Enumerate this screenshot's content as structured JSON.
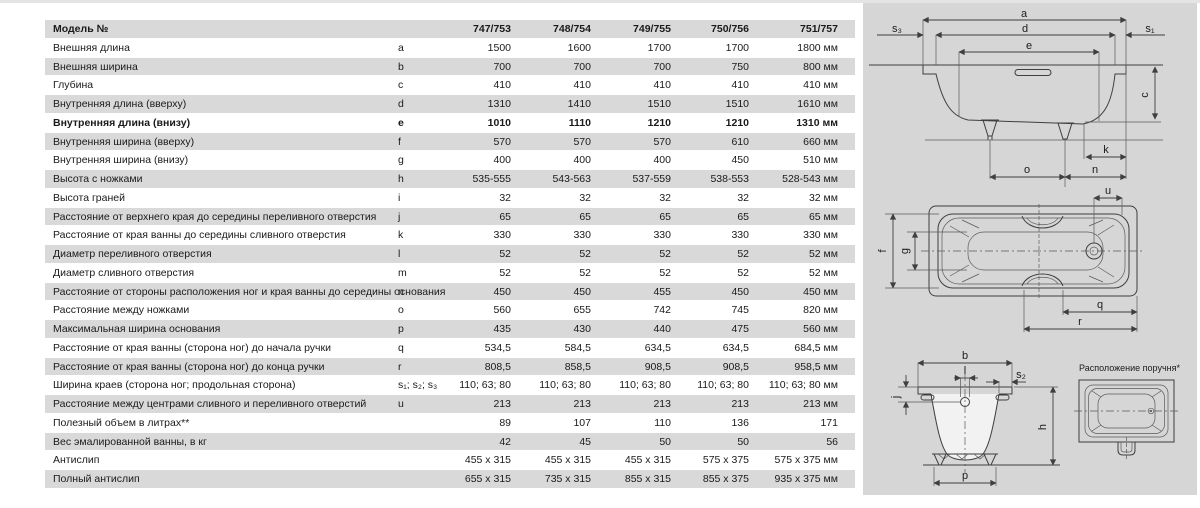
{
  "colors": {
    "row_shade": "#d9d9d9",
    "panel": "#d6d6d6",
    "line": "#3f3f3f",
    "text": "#1a1a1a"
  },
  "table": {
    "header": {
      "label": "Модель №",
      "models": [
        "747/753",
        "748/754",
        "749/755",
        "750/756",
        "751/757"
      ]
    },
    "rows": [
      {
        "label": "Внешняя длина",
        "letter": "a",
        "values": [
          "1500",
          "1600",
          "1700",
          "1700",
          "1800"
        ],
        "unit": "мм"
      },
      {
        "label": "Внешняя ширина",
        "letter": "b",
        "values": [
          "700",
          "700",
          "700",
          "750",
          "800"
        ],
        "unit": "мм"
      },
      {
        "label": "Глубина",
        "letter": "c",
        "values": [
          "410",
          "410",
          "410",
          "410",
          "410"
        ],
        "unit": "мм"
      },
      {
        "label": "Внутренняя длина (вверху)",
        "letter": "d",
        "values": [
          "1310",
          "1410",
          "1510",
          "1510",
          "1610"
        ],
        "unit": "мм"
      },
      {
        "label": "Внутренняя длина (внизу)",
        "letter": "e",
        "values": [
          "1010",
          "1110",
          "1210",
          "1210",
          "1310"
        ],
        "unit": "мм",
        "bold": true
      },
      {
        "label": "Внутренняя ширина (вверху)",
        "letter": "f",
        "values": [
          "570",
          "570",
          "570",
          "610",
          "660"
        ],
        "unit": "мм"
      },
      {
        "label": "Внутренняя ширина (внизу)",
        "letter": "g",
        "values": [
          "400",
          "400",
          "400",
          "450",
          "510"
        ],
        "unit": "мм"
      },
      {
        "label": "Высота с ножками",
        "letter": "h",
        "values": [
          "535-555",
          "543-563",
          "537-559",
          "538-553",
          "528-543"
        ],
        "unit": "мм"
      },
      {
        "label": "Высота граней",
        "letter": "i",
        "values": [
          "32",
          "32",
          "32",
          "32",
          "32"
        ],
        "unit": "мм"
      },
      {
        "label": "Расстояние от верхнего края до середины переливного отверстия",
        "letter": "j",
        "values": [
          "65",
          "65",
          "65",
          "65",
          "65"
        ],
        "unit": "мм"
      },
      {
        "label": "Расстояние от края ванны до середины сливного отверстия",
        "letter": "k",
        "values": [
          "330",
          "330",
          "330",
          "330",
          "330"
        ],
        "unit": "мм"
      },
      {
        "label": "Диаметр переливного отверстия",
        "letter": "l",
        "values": [
          "52",
          "52",
          "52",
          "52",
          "52"
        ],
        "unit": "мм"
      },
      {
        "label": "Диаметр сливного отверстия",
        "letter": "m",
        "values": [
          "52",
          "52",
          "52",
          "52",
          "52"
        ],
        "unit": "мм"
      },
      {
        "label": "Расстояние от стороны расположения ног и края ванны до середины основания",
        "letter": "n",
        "values": [
          "450",
          "450",
          "455",
          "450",
          "450"
        ],
        "unit": "мм"
      },
      {
        "label": "Расстояние между ножками",
        "letter": "o",
        "values": [
          "560",
          "655",
          "742",
          "745",
          "820"
        ],
        "unit": "мм"
      },
      {
        "label": "Максимальная ширина основания",
        "letter": "p",
        "values": [
          "435",
          "430",
          "440",
          "475",
          "560"
        ],
        "unit": "мм"
      },
      {
        "label": "Расстояние от края ванны (сторона ног) до начала ручки",
        "letter": "q",
        "values": [
          "534,5",
          "584,5",
          "634,5",
          "634,5",
          "684,5"
        ],
        "unit": "мм"
      },
      {
        "label": "Расстояние от края ванны (сторона ног) до конца ручки",
        "letter": "r",
        "values": [
          "808,5",
          "858,5",
          "908,5",
          "908,5",
          "958,5"
        ],
        "unit": "мм"
      },
      {
        "label": "Ширина краев (сторона ног; продольная сторона)",
        "letter": "s₁; s₂; s₃",
        "values": [
          "110; 63; 80",
          "110; 63; 80",
          "110; 63; 80",
          "110; 63; 80",
          "110; 63; 80"
        ],
        "unit": "мм"
      },
      {
        "label": "Расстояние между центрами сливного и переливного отверстий",
        "letter": "u",
        "values": [
          "213",
          "213",
          "213",
          "213",
          "213"
        ],
        "unit": "мм"
      },
      {
        "label": "Полезный объем в литрах**",
        "letter": "",
        "values": [
          "89",
          "107",
          "110",
          "136",
          "171"
        ],
        "unit": ""
      },
      {
        "label": "Вес эмалированной ванны, в кг",
        "letter": "",
        "values": [
          "42",
          "45",
          "50",
          "50",
          "56"
        ],
        "unit": ""
      },
      {
        "label": "Антислип",
        "letter": "",
        "values": [
          "455 x 315",
          "455 x 315",
          "455 x 315",
          "575 x 375",
          "575 x 375"
        ],
        "unit": "мм"
      },
      {
        "label": "Полный антислип",
        "letter": "",
        "values": [
          "655 x 315",
          "735 x 315",
          "855 x 315",
          "855 x 375",
          "935 x 375"
        ],
        "unit": "мм"
      }
    ]
  },
  "drawings": {
    "side_view": {
      "labels": {
        "a": "a",
        "d": "d",
        "e": "e",
        "s3": "s₃",
        "s1": "s₁",
        "c": "c",
        "k": "k",
        "o": "o",
        "n": "n"
      }
    },
    "top_view": {
      "labels": {
        "u": "u",
        "f": "f",
        "g": "g",
        "q": "q",
        "r": "r"
      }
    },
    "cross_section": {
      "labels": {
        "b": "b",
        "l": "l",
        "s2": "s₂",
        "j": "j",
        "h": "h",
        "p": "p"
      }
    },
    "handle_view": {
      "caption": "Расположение поручня*"
    }
  }
}
